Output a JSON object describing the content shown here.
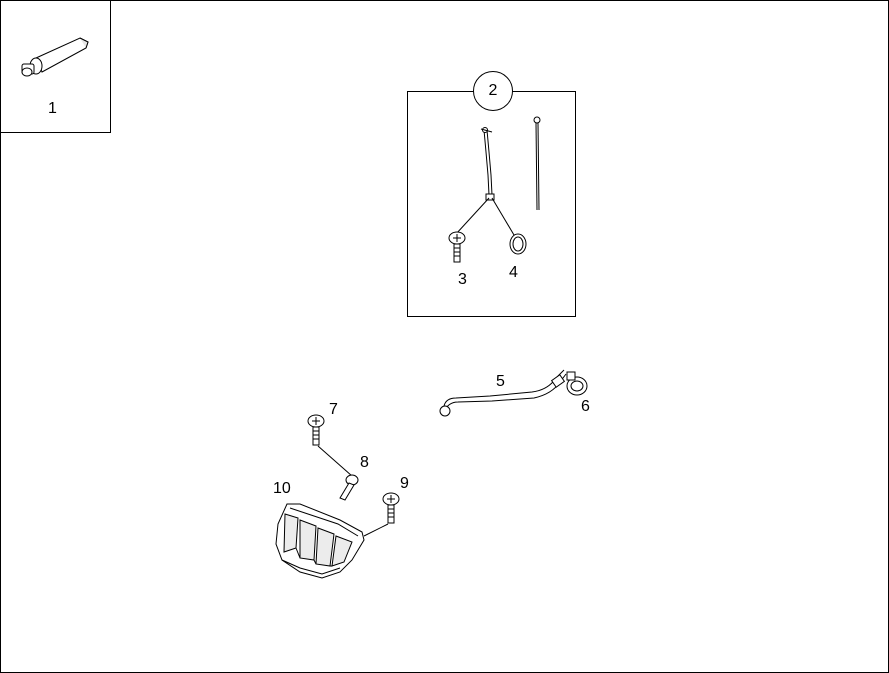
{
  "callouts": {
    "c1": "1",
    "c2": "2",
    "c3": "3",
    "c4": "4",
    "c5": "5",
    "c6": "6",
    "c7": "7",
    "c8": "8",
    "c9": "9",
    "c10": "10"
  },
  "colors": {
    "line": "#000000",
    "fill": "#ffffff",
    "shade": "#d8d8d8"
  }
}
